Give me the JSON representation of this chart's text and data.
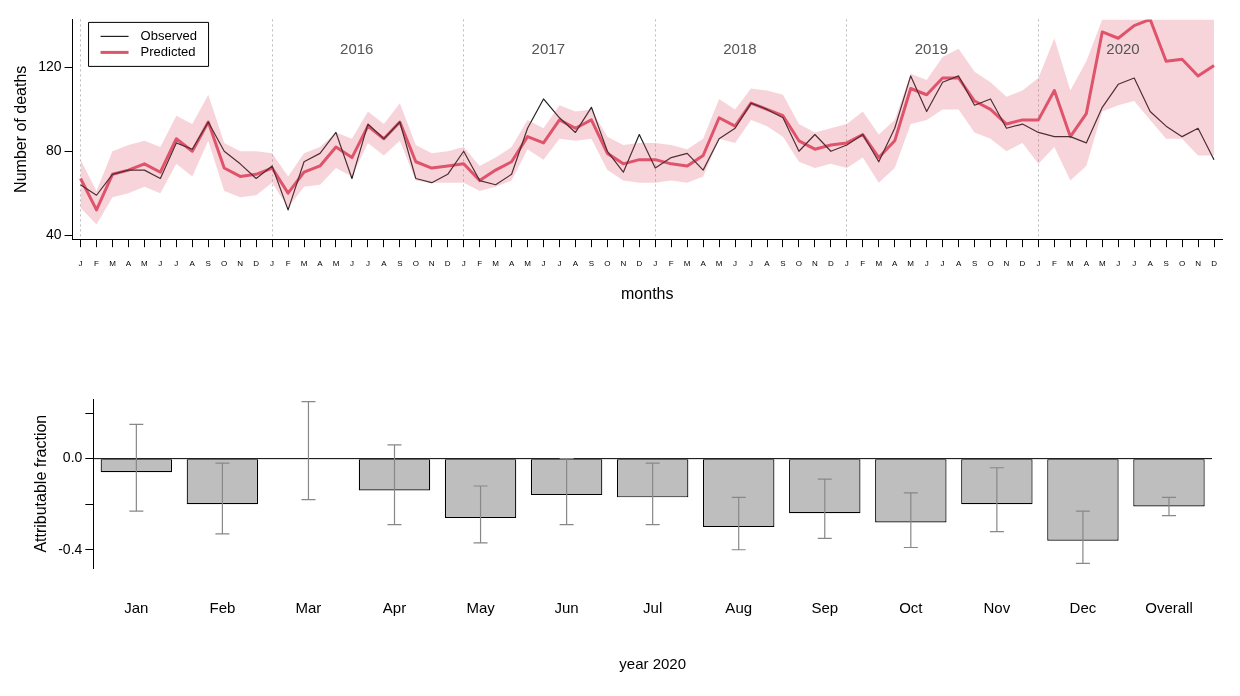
{
  "chart_data": [
    {
      "type": "line",
      "xlabel": "months",
      "ylabel": "Number of deaths",
      "marker": "none",
      "legend": "top left",
      "categories": [
        "J",
        "F",
        "M",
        "A",
        "M",
        "J",
        "J",
        "A",
        "S",
        "O",
        "N",
        "D",
        "J",
        "F",
        "M",
        "A",
        "M",
        "J",
        "J",
        "A",
        "S",
        "O",
        "N",
        "D",
        "J",
        "F",
        "M",
        "A",
        "M",
        "J",
        "J",
        "A",
        "S",
        "O",
        "N",
        "D",
        "J",
        "F",
        "M",
        "A",
        "M",
        "J",
        "J",
        "A",
        "S",
        "O",
        "N",
        "D",
        "J",
        "F",
        "M",
        "A",
        "M",
        "J",
        "J",
        "A",
        "S",
        "O",
        "N",
        "D",
        "J",
        "F",
        "M",
        "A",
        "M",
        "J",
        "J",
        "A",
        "S",
        "O",
        "N",
        "D"
      ],
      "ylim": [
        38,
        143
      ],
      "yticks": [
        40,
        80,
        120
      ],
      "series": [
        {
          "name": "Observed",
          "color": "#222222",
          "values": [
            64,
            59,
            69,
            71,
            71,
            67,
            84,
            81,
            94,
            80,
            74,
            67,
            73,
            52,
            75,
            79,
            89,
            67,
            93,
            86,
            94,
            67,
            65,
            69,
            80,
            66,
            64,
            69,
            91,
            105,
            96,
            89,
            101,
            80,
            70,
            88,
            72,
            77,
            79,
            71,
            86,
            91,
            103,
            100,
            96,
            80,
            88,
            80,
            83,
            88,
            75,
            91,
            116,
            99,
            113,
            116,
            102,
            105,
            91,
            93,
            89,
            87,
            87,
            84,
            101,
            112,
            115,
            99,
            92,
            87,
            91,
            76
          ]
        },
        {
          "name": "Predicted",
          "color": "#df536b",
          "values": [
            67,
            52,
            69,
            71,
            74,
            70,
            86,
            80,
            94,
            72,
            68,
            69,
            72,
            60,
            70,
            73,
            82,
            77,
            92,
            86,
            94,
            75,
            72,
            73,
            74,
            66,
            71,
            75,
            87,
            84,
            95,
            91,
            95,
            79,
            74,
            76,
            76,
            74,
            73,
            78,
            96,
            92,
            103,
            100,
            97,
            85,
            81,
            83,
            84,
            88,
            77,
            85,
            110,
            107,
            115,
            115,
            104,
            100,
            93,
            95,
            95,
            109,
            87,
            98,
            137,
            134,
            140,
            143,
            123,
            124,
            116,
            121
          ],
          "lower": [
            53,
            45,
            58,
            60,
            63,
            60,
            74,
            68,
            85,
            61,
            58,
            59,
            65,
            53,
            63,
            64,
            72,
            68,
            84,
            78,
            85,
            66,
            65,
            65,
            65,
            61,
            63,
            66,
            81,
            76,
            86,
            85,
            86,
            71,
            66,
            65,
            65,
            66,
            65,
            68,
            86,
            84,
            95,
            92,
            87,
            75,
            72,
            74,
            72,
            77,
            65,
            72,
            93,
            95,
            100,
            100,
            89,
            86,
            80,
            84,
            74,
            82,
            66,
            73,
            99,
            102,
            104,
            95,
            86,
            86,
            78,
            78
          ],
          "upper": [
            76,
            61,
            80,
            83,
            85,
            82,
            97,
            93,
            107,
            84,
            80,
            80,
            79,
            68,
            79,
            82,
            89,
            86,
            99,
            93,
            103,
            83,
            79,
            80,
            82,
            73,
            77,
            82,
            95,
            91,
            102,
            99,
            100,
            87,
            83,
            84,
            84,
            83,
            81,
            86,
            105,
            100,
            110,
            109,
            107,
            93,
            89,
            91,
            93,
            99,
            88,
            95,
            117,
            114,
            125,
            129,
            118,
            113,
            106,
            109,
            115,
            134,
            109,
            123,
            143,
            143,
            143,
            143,
            143,
            143,
            143,
            143
          ]
        }
      ],
      "grid": "x",
      "annotations": [
        "2016",
        "2017",
        "2018",
        "2019",
        "2020"
      ]
    },
    {
      "type": "bar",
      "xlabel": "year 2020",
      "ylabel": "Attributable fraction",
      "color": "#bebebe",
      "categories": [
        "Jan",
        "Feb",
        "Mar",
        "Apr",
        "May",
        "Jun",
        "Jul",
        "Aug",
        "Sep",
        "Oct",
        "Nov",
        "Dec",
        "Overall"
      ],
      "values": [
        -0.06,
        -0.2,
        0.0,
        -0.14,
        -0.26,
        -0.16,
        -0.17,
        -0.3,
        -0.24,
        -0.28,
        -0.2,
        -0.36,
        -0.21
      ],
      "errors": [
        [
          -0.23,
          0.15
        ],
        [
          -0.33,
          -0.02
        ],
        [
          -0.18,
          0.25
        ],
        [
          -0.29,
          0.06
        ],
        [
          -0.37,
          -0.12
        ],
        [
          -0.29,
          0.0
        ],
        [
          -0.29,
          -0.02
        ],
        [
          -0.4,
          -0.17
        ],
        [
          -0.35,
          -0.09
        ],
        [
          -0.39,
          -0.15
        ],
        [
          -0.32,
          -0.04
        ],
        [
          -0.46,
          -0.23
        ],
        [
          -0.25,
          -0.17
        ]
      ],
      "ylim": [
        -0.48,
        0.26
      ],
      "yticks": [
        {
          "value": 0.2,
          "label": null
        },
        {
          "value": 0,
          "label": "0.0"
        },
        {
          "value": -0.2,
          "label": null
        },
        {
          "value": -0.4,
          "label": "-0.4"
        }
      ],
      "ref_lines": [
        {
          "axis": "y",
          "value": 0,
          "color": "#000000"
        }
      ]
    }
  ]
}
